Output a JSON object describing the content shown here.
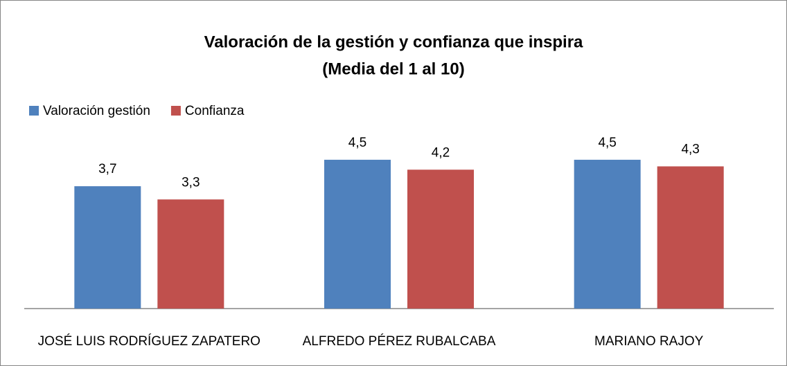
{
  "chart_data": {
    "type": "bar",
    "title": "Valoración de la gestión y confianza que inspira",
    "subtitle": "(Media del 1 al 10)",
    "categories": [
      "JOSÉ LUIS RODRÍGUEZ ZAPATERO",
      "ALFREDO PÉREZ RUBALCABA",
      "MARIANO RAJOY"
    ],
    "series": [
      {
        "name": "Valoración gestión",
        "color": "#4f81bd",
        "values": [
          3.7,
          4.5,
          4.5
        ],
        "value_labels": [
          "3,7",
          "4,5",
          "4,5"
        ]
      },
      {
        "name": "Confianza",
        "color": "#c0504d",
        "values": [
          3.3,
          4.2,
          4.3
        ],
        "value_labels": [
          "3,3",
          "4,2",
          "4,3"
        ]
      }
    ],
    "ylim": [
      0,
      5
    ],
    "legend": "top-left"
  }
}
